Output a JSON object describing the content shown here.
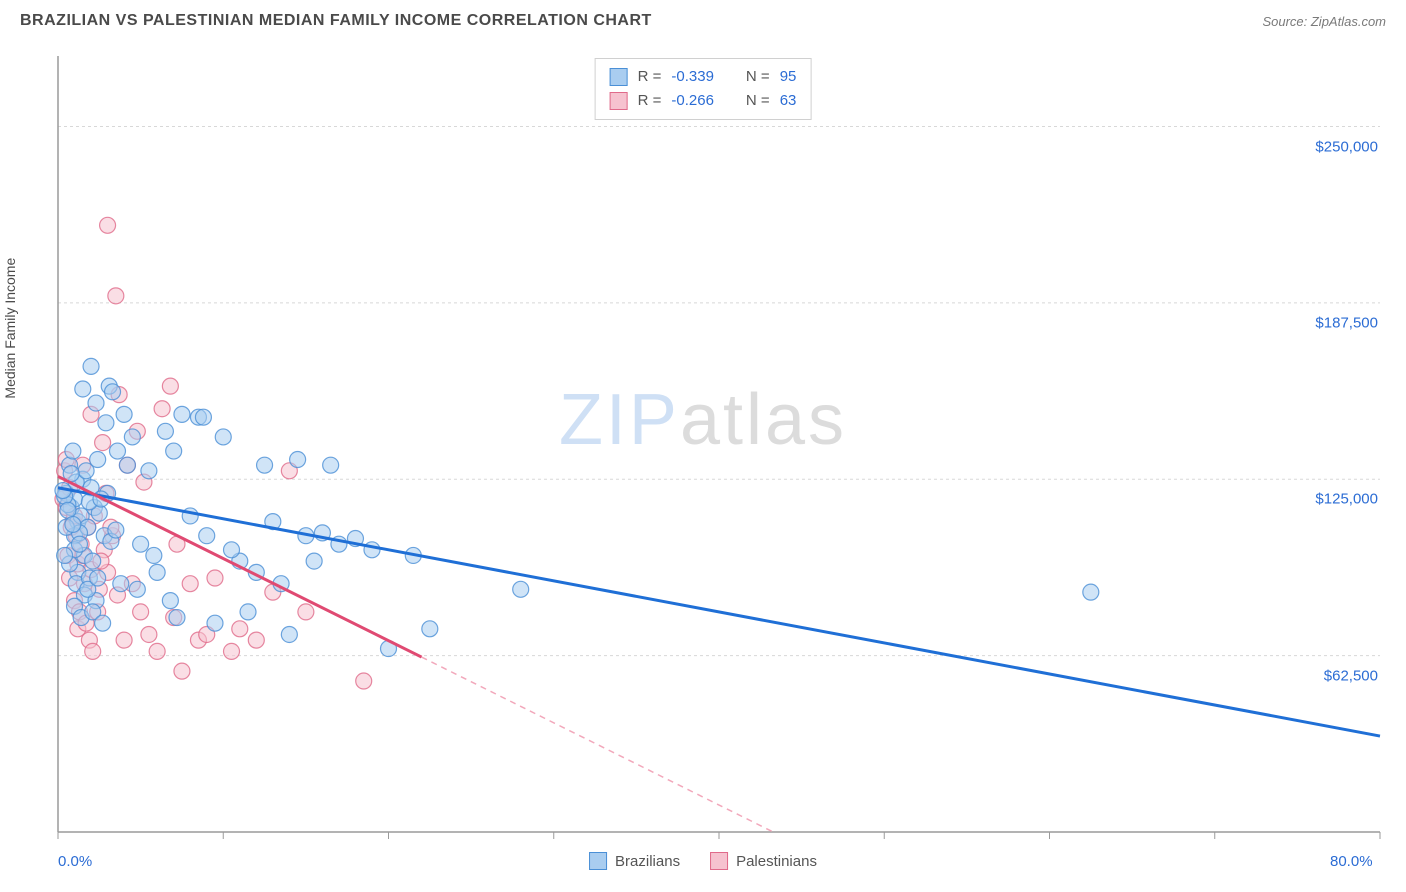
{
  "title": "BRAZILIAN VS PALESTINIAN MEDIAN FAMILY INCOME CORRELATION CHART",
  "source_label": "Source: ZipAtlas.com",
  "watermark": {
    "part1": "ZIP",
    "part2": "atlas"
  },
  "y_axis_title": "Median Family Income",
  "chart": {
    "type": "scatter",
    "xlim": [
      0,
      80
    ],
    "ylim": [
      0,
      275000
    ],
    "x_start_label": "0.0%",
    "x_end_label": "80.0%",
    "x_ticks_pct": [
      0,
      10,
      20,
      30,
      40,
      50,
      60,
      70,
      80
    ],
    "y_gridlines": [
      62500,
      125000,
      187500,
      250000
    ],
    "y_tick_labels": [
      "$62,500",
      "$125,000",
      "$187,500",
      "$250,000"
    ],
    "grid_color": "#d8d8d8",
    "axis_color": "#9a9a9a",
    "background_color": "#ffffff",
    "marker_radius": 8,
    "marker_opacity": 0.55,
    "series": [
      {
        "name": "Brazilians",
        "color_fill": "#a9cdf0",
        "color_stroke": "#4a8fd6",
        "R": "-0.339",
        "N": "95",
        "regression": {
          "x1": 0,
          "y1": 122000,
          "x2": 80,
          "y2": 34000,
          "stroke": "#1f6fd6",
          "width": 3
        },
        "points": [
          [
            0.5,
            120000
          ],
          [
            0.8,
            115000
          ],
          [
            1.0,
            118000
          ],
          [
            1.2,
            110000
          ],
          [
            1.5,
            125000
          ],
          [
            1.0,
            105000
          ],
          [
            0.7,
            130000
          ],
          [
            1.4,
            112000
          ],
          [
            1.8,
            108000
          ],
          [
            2.0,
            122000
          ],
          [
            0.9,
            135000
          ],
          [
            1.6,
            98000
          ],
          [
            2.2,
            115000
          ],
          [
            0.6,
            116000
          ],
          [
            1.1,
            124000
          ],
          [
            1.3,
            106000
          ],
          [
            2.5,
            113000
          ],
          [
            0.4,
            119000
          ],
          [
            1.7,
            128000
          ],
          [
            2.8,
            105000
          ],
          [
            1.9,
            117000
          ],
          [
            0.3,
            121000
          ],
          [
            1.0,
            100000
          ],
          [
            2.1,
            96000
          ],
          [
            3.0,
            120000
          ],
          [
            2.4,
            132000
          ],
          [
            3.2,
            103000
          ],
          [
            1.2,
            92000
          ],
          [
            0.8,
            127000
          ],
          [
            2.6,
            118000
          ],
          [
            3.5,
            107000
          ],
          [
            4.0,
            148000
          ],
          [
            3.8,
            88000
          ],
          [
            4.5,
            140000
          ],
          [
            5.0,
            102000
          ],
          [
            2.3,
            152000
          ],
          [
            2.9,
            145000
          ],
          [
            3.6,
            135000
          ],
          [
            4.2,
            130000
          ],
          [
            5.5,
            128000
          ],
          [
            6.0,
            92000
          ],
          [
            3.1,
            158000
          ],
          [
            7.0,
            135000
          ],
          [
            7.5,
            148000
          ],
          [
            5.8,
            98000
          ],
          [
            8.0,
            112000
          ],
          [
            4.8,
            86000
          ],
          [
            6.5,
            142000
          ],
          [
            8.5,
            147000
          ],
          [
            9.0,
            105000
          ],
          [
            7.2,
            76000
          ],
          [
            10.0,
            140000
          ],
          [
            6.8,
            82000
          ],
          [
            11.0,
            96000
          ],
          [
            8.8,
            147000
          ],
          [
            12.5,
            130000
          ],
          [
            9.5,
            74000
          ],
          [
            13.0,
            110000
          ],
          [
            10.5,
            100000
          ],
          [
            14.5,
            132000
          ],
          [
            11.5,
            78000
          ],
          [
            15.0,
            105000
          ],
          [
            12.0,
            92000
          ],
          [
            16.5,
            130000
          ],
          [
            13.5,
            88000
          ],
          [
            17.0,
            102000
          ],
          [
            14.0,
            70000
          ],
          [
            18.0,
            104000
          ],
          [
            15.5,
            96000
          ],
          [
            19.0,
            100000
          ],
          [
            16.0,
            106000
          ],
          [
            20.0,
            65000
          ],
          [
            21.5,
            98000
          ],
          [
            22.5,
            72000
          ],
          [
            28.0,
            86000
          ],
          [
            1.5,
            157000
          ],
          [
            2.0,
            165000
          ],
          [
            3.3,
            156000
          ],
          [
            62.5,
            85000
          ],
          [
            0.5,
            108000
          ],
          [
            0.7,
            95000
          ],
          [
            1.1,
            88000
          ],
          [
            1.6,
            84000
          ],
          [
            1.9,
            90000
          ],
          [
            2.3,
            82000
          ],
          [
            0.4,
            98000
          ],
          [
            1.0,
            80000
          ],
          [
            1.4,
            76000
          ],
          [
            2.1,
            78000
          ],
          [
            2.7,
            74000
          ],
          [
            0.6,
            114000
          ],
          [
            0.9,
            109000
          ],
          [
            1.3,
            102000
          ],
          [
            1.8,
            86000
          ],
          [
            2.4,
            90000
          ]
        ]
      },
      {
        "name": "Palestinians",
        "color_fill": "#f6c2cf",
        "color_stroke": "#e06a8a",
        "R": "-0.266",
        "N": "63",
        "regression": {
          "x1": 0,
          "y1": 126000,
          "x2": 22,
          "y2": 62000,
          "stroke": "#e04a72",
          "width": 3
        },
        "regression_ext": {
          "x1": 22,
          "y1": 62000,
          "x2": 45,
          "y2": -5000,
          "stroke": "#f2a8bb",
          "width": 1.5,
          "dash": "6,5"
        },
        "points": [
          [
            0.3,
            118000
          ],
          [
            0.5,
            115000
          ],
          [
            0.7,
            122000
          ],
          [
            0.9,
            110000
          ],
          [
            1.1,
            105000
          ],
          [
            0.4,
            128000
          ],
          [
            0.6,
            98000
          ],
          [
            0.8,
            108000
          ],
          [
            1.0,
            112000
          ],
          [
            1.2,
            95000
          ],
          [
            0.5,
            132000
          ],
          [
            1.4,
            102000
          ],
          [
            0.7,
            90000
          ],
          [
            1.6,
            88000
          ],
          [
            1.0,
            82000
          ],
          [
            1.8,
            108000
          ],
          [
            1.3,
            78000
          ],
          [
            2.0,
            93000
          ],
          [
            1.5,
            98000
          ],
          [
            2.2,
            112000
          ],
          [
            1.2,
            72000
          ],
          [
            2.5,
            86000
          ],
          [
            1.7,
            74000
          ],
          [
            2.8,
            100000
          ],
          [
            1.9,
            68000
          ],
          [
            3.0,
            92000
          ],
          [
            2.1,
            64000
          ],
          [
            3.3,
            105000
          ],
          [
            2.4,
            78000
          ],
          [
            3.6,
            84000
          ],
          [
            2.6,
            96000
          ],
          [
            4.0,
            68000
          ],
          [
            2.9,
            120000
          ],
          [
            4.5,
            88000
          ],
          [
            3.2,
            108000
          ],
          [
            5.0,
            78000
          ],
          [
            3.7,
            155000
          ],
          [
            5.5,
            70000
          ],
          [
            4.2,
            130000
          ],
          [
            6.0,
            64000
          ],
          [
            4.8,
            142000
          ],
          [
            7.0,
            76000
          ],
          [
            5.2,
            124000
          ],
          [
            7.5,
            57000
          ],
          [
            6.3,
            150000
          ],
          [
            8.0,
            88000
          ],
          [
            6.8,
            158000
          ],
          [
            8.5,
            68000
          ],
          [
            7.2,
            102000
          ],
          [
            9.0,
            70000
          ],
          [
            9.5,
            90000
          ],
          [
            10.5,
            64000
          ],
          [
            11.0,
            72000
          ],
          [
            12.0,
            68000
          ],
          [
            13.0,
            85000
          ],
          [
            15.0,
            78000
          ],
          [
            14.0,
            128000
          ],
          [
            18.5,
            53500
          ],
          [
            3.5,
            190000
          ],
          [
            3.0,
            215000
          ],
          [
            2.0,
            148000
          ],
          [
            2.7,
            138000
          ],
          [
            1.5,
            130000
          ]
        ]
      }
    ]
  },
  "stat_legend": {
    "R_label": "R =",
    "N_label": "N ="
  },
  "bottom_legend": {
    "label1": "Brazilians",
    "label2": "Palestinians"
  }
}
